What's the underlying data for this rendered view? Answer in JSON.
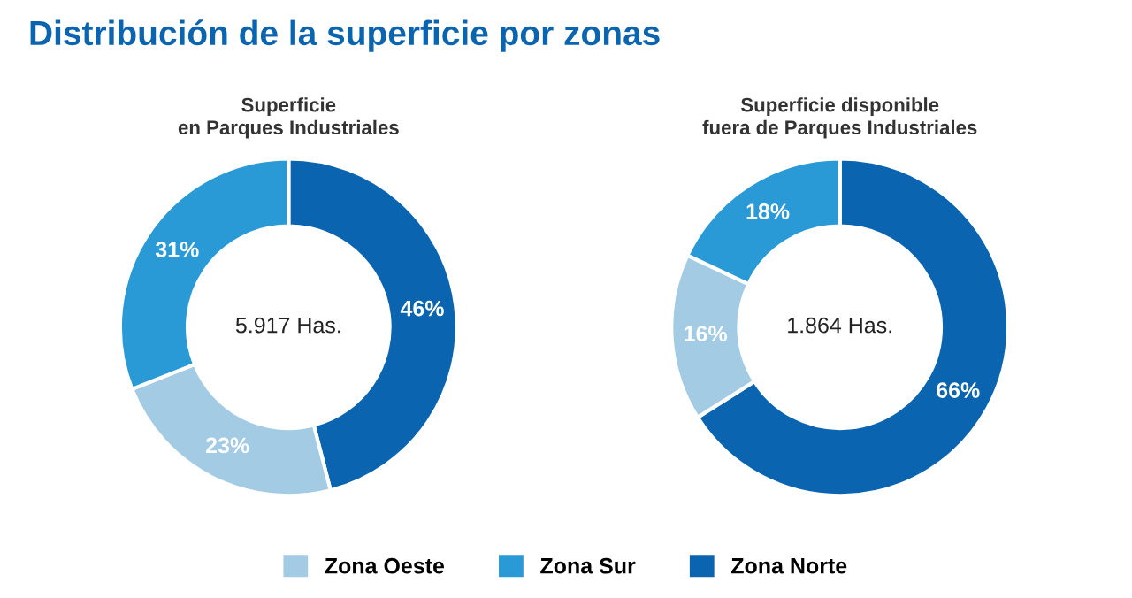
{
  "chart_data": [
    {
      "type": "donut",
      "title": "Superficie\nen Parques Industriales",
      "categories": [
        "Zona Norte",
        "Zona Oeste",
        "Zona Sur"
      ],
      "values": [
        46,
        23,
        31
      ],
      "colors": [
        "#0b64b0",
        "#a3cbe4",
        "#2a9ad6"
      ],
      "value_labels": [
        "46%",
        "23%",
        "31%"
      ],
      "annotations": [
        "Distribución de la superficie por zonas",
        "5.917 Has."
      ],
      "legend": "bottom"
    },
    {
      "type": "donut",
      "title": "Superficie disponible\nfuera de Parques Industriales",
      "categories": [
        null,
        null,
        null
      ],
      "values": [
        66,
        16,
        18
      ],
      "colors": [
        "#0b64b0",
        "#a3cbe4",
        "#2a9ad6"
      ],
      "value_labels": [
        "66%",
        "16%",
        "18%"
      ],
      "annotations": [
        "1.864 Has."
      ]
    }
  ]
}
